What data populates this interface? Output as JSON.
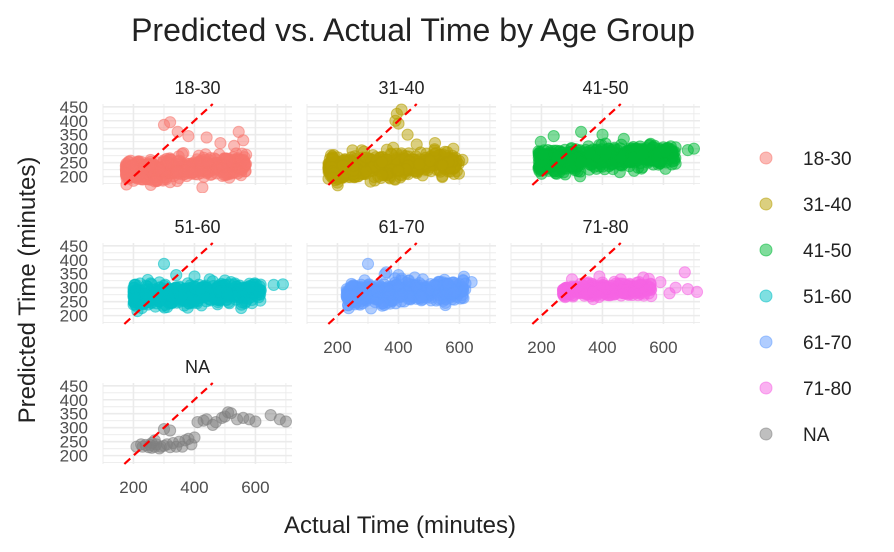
{
  "chart_data": {
    "type": "scatter",
    "title": "Predicted vs. Actual Time by Age Group",
    "xlabel": "Actual Time (minutes)",
    "ylabel": "Predicted Time (minutes)",
    "xlim": [
      100,
      720
    ],
    "ylim": [
      170,
      460
    ],
    "x_ticks": [
      200,
      400,
      600
    ],
    "y_ticks": [
      200,
      250,
      300,
      350,
      400,
      450
    ],
    "reference_line": {
      "type": "y = x",
      "color": "#ff0000",
      "style": "dashed"
    },
    "legend_position": "right",
    "grid": true,
    "facets": [
      {
        "name": "18-30",
        "color": "#F8766D",
        "n": 520,
        "x_range": [
          175,
          570
        ],
        "y_center": 230,
        "y_spread": 18,
        "slope": 0.05,
        "outliers": [
          [
            300,
            385
          ],
          [
            320,
            395
          ],
          [
            345,
            360
          ],
          [
            380,
            345
          ],
          [
            440,
            340
          ],
          [
            485,
            320
          ],
          [
            530,
            310
          ],
          [
            560,
            330
          ],
          [
            545,
            360
          ],
          [
            200,
            185
          ],
          [
            270,
            183
          ],
          [
            230,
            190
          ]
        ]
      },
      {
        "name": "31-40",
        "color": "#B79F00",
        "n": 560,
        "x_range": [
          170,
          600
        ],
        "y_center": 238,
        "y_spread": 20,
        "slope": 0.06,
        "outliers": [
          [
            390,
            400
          ],
          [
            395,
            425
          ],
          [
            410,
            440
          ],
          [
            400,
            390
          ],
          [
            430,
            350
          ],
          [
            520,
            320
          ],
          [
            580,
            300
          ],
          [
            610,
            260
          ],
          [
            460,
            315
          ]
        ]
      },
      {
        "name": "41-50",
        "color": "#00BA38",
        "n": 560,
        "x_range": [
          190,
          640
        ],
        "y_center": 265,
        "y_spread": 20,
        "slope": 0.06,
        "outliers": [
          [
            240,
            345
          ],
          [
            330,
            360
          ],
          [
            400,
            350
          ],
          [
            470,
            335
          ],
          [
            600,
            305
          ],
          [
            640,
            305
          ],
          [
            700,
            300
          ],
          [
            680,
            295
          ],
          [
            200,
            210
          ],
          [
            250,
            210
          ]
        ]
      },
      {
        "name": "51-60",
        "color": "#00BFC4",
        "n": 520,
        "x_range": [
          200,
          620
        ],
        "y_center": 275,
        "y_spread": 18,
        "slope": 0.05,
        "outliers": [
          [
            300,
            385
          ],
          [
            340,
            345
          ],
          [
            450,
            330
          ],
          [
            520,
            320
          ],
          [
            580,
            305
          ],
          [
            660,
            310
          ],
          [
            690,
            312
          ],
          [
            400,
            340
          ]
        ]
      },
      {
        "name": "61-70",
        "color": "#619CFF",
        "n": 520,
        "x_range": [
          230,
          620
        ],
        "y_center": 280,
        "y_spread": 18,
        "slope": 0.05,
        "outliers": [
          [
            300,
            385
          ],
          [
            360,
            355
          ],
          [
            400,
            345
          ],
          [
            480,
            330
          ],
          [
            560,
            315
          ],
          [
            620,
            315
          ],
          [
            640,
            320
          ],
          [
            250,
            250
          ]
        ]
      },
      {
        "name": "71-80",
        "color": "#F564E3",
        "n": 300,
        "x_range": [
          270,
          560
        ],
        "y_center": 290,
        "y_spread": 12,
        "slope": 0.04,
        "outliers": [
          [
            300,
            330
          ],
          [
            390,
            340
          ],
          [
            460,
            330
          ],
          [
            520,
            320
          ],
          [
            590,
            320
          ],
          [
            640,
            300
          ],
          [
            670,
            355
          ],
          [
            680,
            295
          ],
          [
            710,
            285
          ],
          [
            620,
            280
          ],
          [
            560,
            270
          ]
        ]
      },
      {
        "name": "NA",
        "color": "#7F7F7F",
        "n": 0,
        "x_range": [
          200,
          720
        ],
        "y_center": 240,
        "y_spread": 0,
        "slope": 0,
        "points": [
          [
            210,
            232
          ],
          [
            230,
            232
          ],
          [
            250,
            230
          ],
          [
            255,
            238
          ],
          [
            260,
            228
          ],
          [
            270,
            232
          ],
          [
            275,
            240
          ],
          [
            285,
            226
          ],
          [
            290,
            232
          ],
          [
            300,
            235
          ],
          [
            310,
            240
          ],
          [
            320,
            230
          ],
          [
            330,
            245
          ],
          [
            340,
            232
          ],
          [
            350,
            250
          ],
          [
            360,
            232
          ],
          [
            370,
            255
          ],
          [
            380,
            260
          ],
          [
            390,
            240
          ],
          [
            400,
            265
          ],
          [
            300,
            295
          ],
          [
            320,
            290
          ],
          [
            410,
            320
          ],
          [
            430,
            325
          ],
          [
            440,
            330
          ],
          [
            460,
            310
          ],
          [
            470,
            320
          ],
          [
            490,
            335
          ],
          [
            500,
            340
          ],
          [
            510,
            355
          ],
          [
            520,
            352
          ],
          [
            540,
            330
          ],
          [
            560,
            335
          ],
          [
            580,
            330
          ],
          [
            600,
            322
          ],
          [
            650,
            345
          ],
          [
            680,
            330
          ],
          [
            700,
            322
          ],
          [
            260,
            245
          ],
          [
            270,
            255
          ],
          [
            240,
            238
          ],
          [
            225,
            240
          ]
        ]
      }
    ]
  }
}
